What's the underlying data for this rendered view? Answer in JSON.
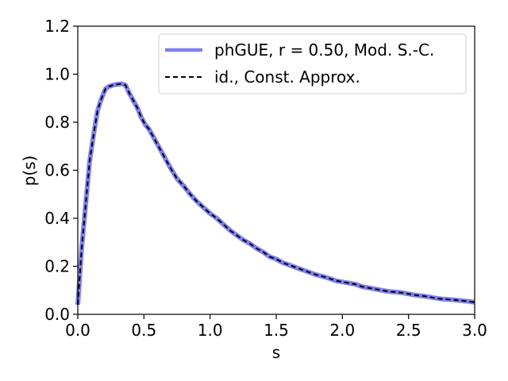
{
  "chart_data": {
    "type": "line",
    "title": "",
    "xlabel": "s",
    "ylabel": "p(s)",
    "xlim": [
      0.0,
      3.0
    ],
    "ylim": [
      0.0,
      1.2
    ],
    "grid": false,
    "legend_position": "top-right",
    "x_tick_labels": [
      "0.0",
      "0.5",
      "1.0",
      "1.5",
      "2.0",
      "2.5",
      "3.0"
    ],
    "y_tick_labels": [
      "0.0",
      "0.2",
      "0.4",
      "0.6",
      "0.8",
      "1.0",
      "1.2"
    ],
    "x": [
      0.0,
      0.03,
      0.06,
      0.09,
      0.12,
      0.15,
      0.18,
      0.21,
      0.24,
      0.27,
      0.3,
      0.33,
      0.36,
      0.39,
      0.42,
      0.45,
      0.48,
      0.51,
      0.54,
      0.57,
      0.6,
      0.65,
      0.7,
      0.75,
      0.8,
      0.85,
      0.9,
      0.95,
      1.0,
      1.05,
      1.1,
      1.15,
      1.2,
      1.25,
      1.3,
      1.35,
      1.4,
      1.45,
      1.5,
      1.55,
      1.6,
      1.65,
      1.7,
      1.75,
      1.8,
      1.85,
      1.9,
      1.95,
      2.0,
      2.05,
      2.1,
      2.15,
      2.2,
      2.25,
      2.3,
      2.35,
      2.4,
      2.45,
      2.5,
      2.55,
      2.6,
      2.65,
      2.7,
      2.75,
      2.8,
      2.85,
      2.9,
      2.95,
      3.0
    ],
    "series": [
      {
        "name": "phGUE, r = 0.50, Mod. S.-C.",
        "color": "#8080f0",
        "style": "solid",
        "values": [
          0.04,
          0.28,
          0.46,
          0.64,
          0.75,
          0.85,
          0.9,
          0.94,
          0.95,
          0.955,
          0.958,
          0.96,
          0.955,
          0.92,
          0.89,
          0.86,
          0.82,
          0.79,
          0.77,
          0.74,
          0.71,
          0.66,
          0.61,
          0.565,
          0.535,
          0.5,
          0.47,
          0.445,
          0.42,
          0.4,
          0.375,
          0.35,
          0.33,
          0.31,
          0.295,
          0.275,
          0.26,
          0.24,
          0.23,
          0.215,
          0.205,
          0.195,
          0.185,
          0.175,
          0.165,
          0.158,
          0.15,
          0.14,
          0.135,
          0.13,
          0.125,
          0.115,
          0.11,
          0.105,
          0.1,
          0.095,
          0.093,
          0.09,
          0.085,
          0.08,
          0.077,
          0.073,
          0.068,
          0.064,
          0.062,
          0.06,
          0.057,
          0.054,
          0.05
        ]
      },
      {
        "name": "id., Const. Approx.",
        "color": "#000000",
        "style": "dashed",
        "values": [
          0.04,
          0.28,
          0.46,
          0.64,
          0.75,
          0.85,
          0.9,
          0.94,
          0.95,
          0.955,
          0.958,
          0.96,
          0.955,
          0.92,
          0.89,
          0.86,
          0.82,
          0.79,
          0.77,
          0.74,
          0.71,
          0.66,
          0.61,
          0.565,
          0.535,
          0.5,
          0.47,
          0.445,
          0.42,
          0.4,
          0.375,
          0.35,
          0.33,
          0.31,
          0.295,
          0.275,
          0.26,
          0.24,
          0.23,
          0.215,
          0.205,
          0.195,
          0.185,
          0.175,
          0.165,
          0.158,
          0.15,
          0.14,
          0.135,
          0.13,
          0.125,
          0.115,
          0.11,
          0.105,
          0.1,
          0.095,
          0.093,
          0.09,
          0.085,
          0.08,
          0.077,
          0.073,
          0.068,
          0.064,
          0.062,
          0.06,
          0.057,
          0.054,
          0.05
        ]
      }
    ]
  }
}
